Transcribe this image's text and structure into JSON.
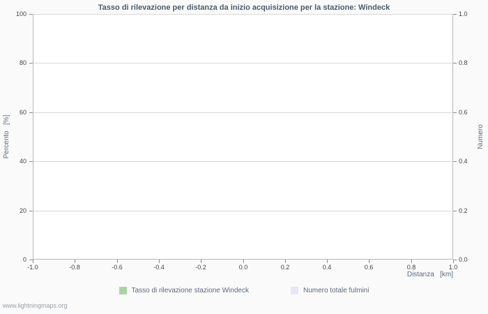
{
  "footer": {
    "link_text": "www.lightningmaps.org"
  },
  "chart_data": {
    "type": "line",
    "title": "Tasso di rilevazione per distanza da inizio acquisizione per la stazione: Windeck",
    "xlabel": "Distanza   [km]",
    "ylabel_left": "Percento   [%]",
    "ylabel_right": "Numero",
    "xlim": [
      -1.0,
      1.0
    ],
    "ylim_left": [
      0,
      100
    ],
    "ylim_right": [
      0.0,
      1.0
    ],
    "x_tick_labels": [
      "-1.0",
      "-0.8",
      "-0.6",
      "-0.4",
      "-0.2",
      "0.0",
      "0.2",
      "0.4",
      "0.6",
      "0.8",
      "1.0"
    ],
    "y_left_tick_labels": [
      "0",
      "20",
      "40",
      "60",
      "80",
      "100"
    ],
    "y_right_tick_labels": [
      "0.0",
      "0.2",
      "0.4",
      "0.6",
      "0.8",
      "1.0"
    ],
    "grid": true,
    "legend_position": "bottom",
    "legend": [
      {
        "label": "Tasso di rilevazione stazione Windeck",
        "color": "#a8d5a2"
      },
      {
        "label": "Numero totale fulmini",
        "color": "#e6e6f5"
      }
    ],
    "series": []
  }
}
